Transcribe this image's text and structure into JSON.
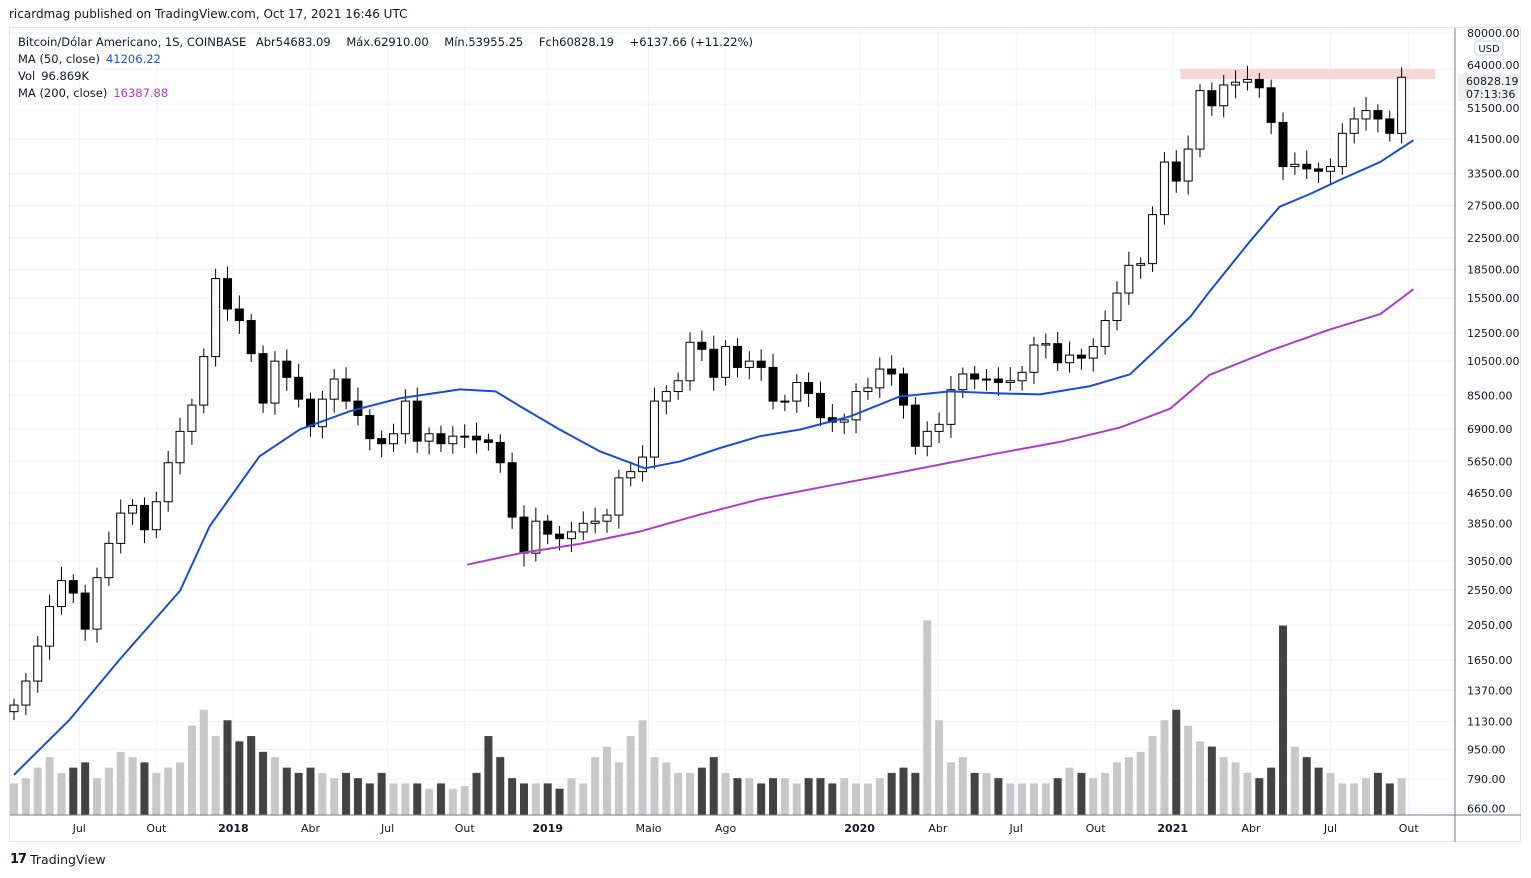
{
  "published": "ricardmag published on TradingView.com, Oct 17, 2021 16:46 UTC",
  "legend": {
    "symbol": "Bitcoin/Dólar Americano, 1S, COINBASE",
    "open_label": "Abr",
    "open": "54683.09",
    "high_label": "Máx.",
    "high": "62910.00",
    "low_label": "Mín.",
    "low": "53955.25",
    "close_label": "Fch",
    "close": "60828.19",
    "change": "+6137.66 (+11.22%)",
    "ma50_label": "MA (50, close)",
    "ma50_value": "41206.22",
    "vol_label": "Vol",
    "vol_value": "96.869K",
    "ma200_label": "MA (200, close)",
    "ma200_value": "16387.88"
  },
  "currency_button": "USD",
  "last_price_tag": {
    "price": "60828.19",
    "countdown": "07:13:36"
  },
  "footer": {
    "logo": "17",
    "brand": "TradingView"
  },
  "colors": {
    "ma50": "#1e4bd2",
    "ma200": "#a93fc9",
    "zone": "#f8d7d7",
    "up_vol": "#c8c8c8",
    "down_vol": "#434343",
    "up_candle": "#ffffff",
    "down_candle": "#000000"
  },
  "chart_data": {
    "type": "candlestick",
    "title": "Bitcoin/Dólar Americano, 1S, COINBASE",
    "scale": "log",
    "ylim": [
      660,
      80000
    ],
    "y_ticks": [
      "80000.00",
      "64000.00",
      "51500.00",
      "41500.00",
      "33500.00",
      "27500.00",
      "22500.00",
      "18500.00",
      "15500.00",
      "12500.00",
      "10500.00",
      "8500.00",
      "6900.00",
      "5650.00",
      "4650.00",
      "3850.00",
      "3050.00",
      "2550.00",
      "2050.00",
      "1650.00",
      "1370.00",
      "1130.00",
      "950.00",
      "790.00",
      "660.00"
    ],
    "x_ticks": [
      {
        "label": "Jul",
        "index": 5.5,
        "bold": false
      },
      {
        "label": "Out",
        "index": 12,
        "bold": false
      },
      {
        "label": "2018",
        "index": 18.5,
        "bold": true
      },
      {
        "label": "Abr",
        "index": 25,
        "bold": false
      },
      {
        "label": "Jul",
        "index": 31.5,
        "bold": false
      },
      {
        "label": "Out",
        "index": 38,
        "bold": false
      },
      {
        "label": "2019",
        "index": 45,
        "bold": true
      },
      {
        "label": "Maio",
        "index": 53.5,
        "bold": false
      },
      {
        "label": "Ago",
        "index": 60,
        "bold": false
      },
      {
        "label": "2020",
        "index": 71.3,
        "bold": true
      },
      {
        "label": "Abr",
        "index": 77.9,
        "bold": false
      },
      {
        "label": "Jul",
        "index": 84.5,
        "bold": false
      },
      {
        "label": "Out",
        "index": 91.2,
        "bold": false
      },
      {
        "label": "2021",
        "index": 97.7,
        "bold": true
      },
      {
        "label": "Abr",
        "index": 104.3,
        "bold": false
      },
      {
        "label": "Jul",
        "index": 111,
        "bold": false
      },
      {
        "label": "Out",
        "index": 117.6,
        "bold": false
      }
    ],
    "start_open": 1200,
    "closes": [
      1250,
      1450,
      1800,
      2300,
      2700,
      2500,
      2000,
      2750,
      3400,
      4100,
      4300,
      3700,
      4400,
      5600,
      6800,
      8000,
      10800,
      17500,
      14500,
      13500,
      11000,
      8100,
      10500,
      9500,
      8300,
      7000,
      8300,
      9400,
      8200,
      7500,
      6500,
      6300,
      6700,
      8200,
      6400,
      6700,
      6300,
      6600,
      6600,
      6450,
      6350,
      5600,
      4000,
      3200,
      3900,
      3600,
      3500,
      3650,
      3850,
      3900,
      4050,
      5100,
      5300,
      5800,
      8200,
      8700,
      9300,
      11800,
      11300,
      9500,
      11500,
      10100,
      10500,
      10100,
      8200,
      8200,
      9200,
      8600,
      7400,
      7200,
      7300,
      8700,
      8900,
      10000,
      9700,
      8000,
      6200,
      6800,
      7100,
      8800,
      9700,
      9400,
      9400,
      9200,
      9300,
      9800,
      11600,
      11700,
      10400,
      10900,
      10700,
      11500,
      13500,
      16000,
      19000,
      19200,
      26000,
      36000,
      32000,
      39000,
      56000,
      51000,
      58000,
      59000,
      60000,
      57000,
      46000,
      35000,
      35500,
      34500,
      34000,
      35000,
      43000,
      47000,
      49500,
      47000,
      43000,
      60828
    ],
    "volumes_k": [
      60,
      70,
      90,
      110,
      80,
      90,
      100,
      70,
      90,
      120,
      110,
      100,
      80,
      90,
      100,
      170,
      200,
      150,
      180,
      140,
      150,
      120,
      110,
      90,
      80,
      90,
      80,
      70,
      80,
      70,
      60,
      80,
      60,
      60,
      60,
      50,
      60,
      50,
      55,
      80,
      150,
      110,
      70,
      60,
      60,
      60,
      50,
      70,
      60,
      110,
      130,
      100,
      150,
      180,
      110,
      100,
      80,
      80,
      90,
      110,
      80,
      70,
      70,
      60,
      70,
      70,
      60,
      70,
      70,
      60,
      70,
      60,
      60,
      70,
      80,
      90,
      80,
      370,
      180,
      100,
      110,
      80,
      80,
      70,
      60,
      60,
      60,
      60,
      70,
      90,
      80,
      70,
      80,
      100,
      110,
      120,
      150,
      180,
      200,
      170,
      140,
      130,
      110,
      100,
      80,
      70,
      90,
      360,
      130,
      110,
      90,
      80,
      60,
      60,
      70,
      80,
      60,
      70,
      97
    ],
    "ma50": [
      [
        0,
        812
      ],
      [
        4.7,
        1143
      ],
      [
        8.9,
        1656
      ],
      [
        14,
        2536
      ],
      [
        16.5,
        3783
      ],
      [
        20.7,
        5826
      ],
      [
        24.1,
        6880
      ],
      [
        28.3,
        7700
      ],
      [
        32.5,
        8340
      ],
      [
        37.6,
        8820
      ],
      [
        40.6,
        8710
      ],
      [
        42.7,
        7930
      ],
      [
        46,
        6880
      ],
      [
        49.4,
        6010
      ],
      [
        53.2,
        5410
      ],
      [
        56.2,
        5650
      ],
      [
        59.5,
        6130
      ],
      [
        62.9,
        6600
      ],
      [
        66.3,
        6880
      ],
      [
        70.5,
        7460
      ],
      [
        74.7,
        8440
      ],
      [
        78.9,
        8710
      ],
      [
        83.1,
        8600
      ],
      [
        86.5,
        8550
      ],
      [
        90.7,
        8990
      ],
      [
        94.1,
        9680
      ],
      [
        96.6,
        11500
      ],
      [
        99.2,
        13840
      ],
      [
        100.8,
        16150
      ],
      [
        104.2,
        22010
      ],
      [
        106.7,
        27290
      ],
      [
        109.3,
        29560
      ],
      [
        111.8,
        32240
      ],
      [
        115.2,
        36020
      ],
      [
        118,
        41206
      ]
    ],
    "ma200": [
      [
        38.2,
        2980
      ],
      [
        42.7,
        3200
      ],
      [
        47.7,
        3390
      ],
      [
        52.8,
        3660
      ],
      [
        57.8,
        4060
      ],
      [
        62.9,
        4470
      ],
      [
        68,
        4810
      ],
      [
        73,
        5150
      ],
      [
        78.1,
        5540
      ],
      [
        83.1,
        5950
      ],
      [
        88.2,
        6370
      ],
      [
        93.3,
        6970
      ],
      [
        97.5,
        7830
      ],
      [
        100.8,
        9640
      ],
      [
        105.9,
        11200
      ],
      [
        111,
        12790
      ],
      [
        115.2,
        14050
      ],
      [
        118,
        16387
      ]
    ],
    "resistance_zone": {
      "from_index": 98.5,
      "to_index": 120,
      "low": 60200,
      "high": 64000
    }
  }
}
